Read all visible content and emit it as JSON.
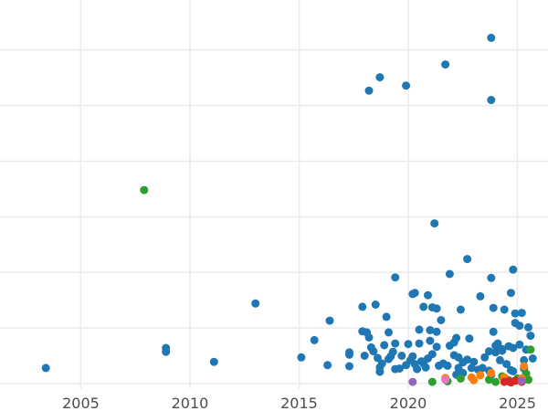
{
  "chart_data": {
    "type": "scatter",
    "title": "",
    "xlabel": "",
    "ylabel": "",
    "xlim": [
      2001.3,
      2026.4
    ],
    "ylim": [
      -1,
      69
    ],
    "grid": true,
    "x_ticks": [
      "2005",
      "2010",
      "2015",
      "2020",
      "2025"
    ],
    "y_ticks": [],
    "colors": {
      "blue": "#1f77b4",
      "orange": "#ff7f0e",
      "green": "#2ca02c",
      "red": "#d62728",
      "purple": "#9467bd",
      "pink": "#e377c2"
    },
    "series": [
      {
        "color": "#1f77b4",
        "points": [
          [
            2003.4,
            2.8
          ],
          [
            2008.9,
            6.4
          ],
          [
            2008.9,
            5.7
          ],
          [
            2011.1,
            3.9
          ],
          [
            2013.0,
            14.4
          ],
          [
            2015.1,
            4.7
          ],
          [
            2015.7,
            7.8
          ],
          [
            2016.3,
            3.3
          ],
          [
            2016.4,
            11.3
          ],
          [
            2017.3,
            5.2
          ],
          [
            2017.3,
            5.6
          ],
          [
            2017.3,
            3.1
          ],
          [
            2017.9,
            13.8
          ],
          [
            2017.9,
            9.4
          ],
          [
            2018.0,
            5.0
          ],
          [
            2018.1,
            9.2
          ],
          [
            2018.2,
            8.3
          ],
          [
            2018.2,
            52.7
          ],
          [
            2018.3,
            6.5
          ],
          [
            2018.4,
            5.8
          ],
          [
            2018.5,
            14.2
          ],
          [
            2018.6,
            4.6
          ],
          [
            2018.7,
            2.9
          ],
          [
            2018.7,
            2.1
          ],
          [
            2018.7,
            55.1
          ],
          [
            2018.8,
            3.6
          ],
          [
            2018.9,
            6.9
          ],
          [
            2019.0,
            12.0
          ],
          [
            2019.1,
            4.4
          ],
          [
            2019.1,
            9.2
          ],
          [
            2019.2,
            4.9
          ],
          [
            2019.3,
            5.7
          ],
          [
            2019.4,
            7.2
          ],
          [
            2019.4,
            2.6
          ],
          [
            2019.4,
            19.1
          ],
          [
            2019.6,
            2.7
          ],
          [
            2019.7,
            5.0
          ],
          [
            2019.9,
            3.3
          ],
          [
            2019.9,
            53.6
          ],
          [
            2020.0,
            7.1
          ],
          [
            2020.1,
            4.2
          ],
          [
            2020.2,
            4.9
          ],
          [
            2020.2,
            16.1
          ],
          [
            2020.3,
            16.3
          ],
          [
            2020.3,
            3.5
          ],
          [
            2020.4,
            2.6
          ],
          [
            2020.5,
            9.7
          ],
          [
            2020.5,
            7.2
          ],
          [
            2020.6,
            4.0
          ],
          [
            2020.7,
            3.6
          ],
          [
            2020.7,
            13.8
          ],
          [
            2020.8,
            2.9
          ],
          [
            2020.9,
            4.5
          ],
          [
            2020.9,
            15.9
          ],
          [
            2021.0,
            7.7
          ],
          [
            2021.0,
            9.6
          ],
          [
            2021.1,
            5.3
          ],
          [
            2021.1,
            13.7
          ],
          [
            2021.2,
            28.8
          ],
          [
            2021.3,
            9.3
          ],
          [
            2021.3,
            6.6
          ],
          [
            2021.3,
            13.5
          ],
          [
            2021.4,
            3.2
          ],
          [
            2021.5,
            11.4
          ],
          [
            2021.6,
            3.6
          ],
          [
            2021.7,
            57.4
          ],
          [
            2021.8,
            3.2
          ],
          [
            2021.9,
            6.8
          ],
          [
            2021.9,
            19.7
          ],
          [
            2022.1,
            7.4
          ],
          [
            2022.1,
            5.1
          ],
          [
            2022.2,
            1.6
          ],
          [
            2022.2,
            8.2
          ],
          [
            2022.3,
            2.8
          ],
          [
            2022.3,
            4.7
          ],
          [
            2022.4,
            13.3
          ],
          [
            2022.5,
            3.8
          ],
          [
            2022.5,
            1.9
          ],
          [
            2022.7,
            22.4
          ],
          [
            2022.7,
            4.3
          ],
          [
            2022.8,
            8.1
          ],
          [
            2022.9,
            2.8
          ],
          [
            2023.0,
            3.9
          ],
          [
            2023.2,
            2.5
          ],
          [
            2023.3,
            15.7
          ],
          [
            2023.4,
            2.8
          ],
          [
            2023.5,
            4.7
          ],
          [
            2023.7,
            5.8
          ],
          [
            2023.7,
            2.3
          ],
          [
            2023.8,
            62.2
          ],
          [
            2023.8,
            51.0
          ],
          [
            2023.8,
            19.0
          ],
          [
            2023.8,
            1.6
          ],
          [
            2023.9,
            9.3
          ],
          [
            2023.9,
            13.6
          ],
          [
            2024.0,
            5.6
          ],
          [
            2024.0,
            6.8
          ],
          [
            2024.1,
            7.2
          ],
          [
            2024.2,
            4.2
          ],
          [
            2024.3,
            5.9
          ],
          [
            2024.3,
            6.2
          ],
          [
            2024.4,
            13.3
          ],
          [
            2024.5,
            3.5
          ],
          [
            2024.6,
            6.7
          ],
          [
            2024.7,
            2.4
          ],
          [
            2024.7,
            16.3
          ],
          [
            2024.8,
            20.5
          ],
          [
            2024.8,
            6.4
          ],
          [
            2024.8,
            2.2
          ],
          [
            2024.9,
            10.9
          ],
          [
            2024.9,
            12.6
          ],
          [
            2025.1,
            7.0
          ],
          [
            2025.1,
            10.4
          ],
          [
            2025.2,
            12.7
          ],
          [
            2025.3,
            4.2
          ],
          [
            2025.3,
            2.7
          ],
          [
            2025.4,
            6.1
          ],
          [
            2025.5,
            10.1
          ],
          [
            2025.6,
            8.6
          ],
          [
            2025.7,
            4.5
          ]
        ]
      },
      {
        "color": "#2ca02c",
        "points": [
          [
            2007.9,
            34.8
          ],
          [
            2021.1,
            0.3
          ],
          [
            2021.8,
            0.4
          ],
          [
            2022.4,
            0.9
          ],
          [
            2023.7,
            0.7
          ],
          [
            2024.0,
            0.3
          ],
          [
            2024.3,
            1.3
          ],
          [
            2024.6,
            0.6
          ],
          [
            2025.0,
            0.9
          ],
          [
            2025.4,
            1.8
          ],
          [
            2025.5,
            0.7
          ],
          [
            2025.6,
            6.1
          ]
        ]
      },
      {
        "color": "#ff7f0e",
        "points": [
          [
            2021.7,
            1.0
          ],
          [
            2022.9,
            1.1
          ],
          [
            2023.0,
            0.6
          ],
          [
            2023.3,
            1.5
          ],
          [
            2023.8,
            1.9
          ],
          [
            2024.4,
            1.1
          ],
          [
            2025.2,
            0.9
          ],
          [
            2025.3,
            3.1
          ]
        ]
      },
      {
        "color": "#d62728",
        "points": [
          [
            2024.4,
            0.3
          ],
          [
            2024.6,
            0.4
          ],
          [
            2024.7,
            0.2
          ],
          [
            2024.9,
            0.5
          ],
          [
            2025.2,
            0.3
          ]
        ]
      },
      {
        "color": "#9467bd",
        "points": [
          [
            2020.2,
            0.3
          ],
          [
            2025.2,
            0.5
          ]
        ]
      },
      {
        "color": "#e377c2",
        "points": [
          [
            2021.7,
            0.7
          ]
        ]
      }
    ]
  }
}
